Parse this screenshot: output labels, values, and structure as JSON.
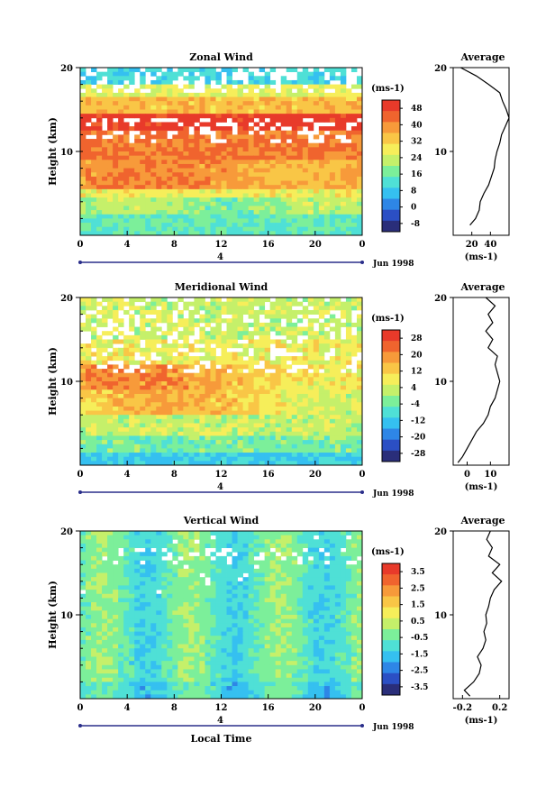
{
  "chart_data": [
    {
      "type": "heatmap",
      "title": "Zonal Wind",
      "ylabel": "Height (km)",
      "xlabel": "",
      "x_ticks": [
        "0",
        "4",
        "8",
        "12",
        "16",
        "20",
        "0"
      ],
      "y_ticks": [
        "10",
        "20"
      ],
      "ylim": [
        0,
        20
      ],
      "date_label": "Jun 1998",
      "date_marker": "4",
      "units": "(ms-1)",
      "colorbar_ticks": [
        "48",
        "40",
        "32",
        "24",
        "16",
        "8",
        "0",
        "-8"
      ],
      "profile": {
        "title": "Average",
        "x_ticks": [
          "20",
          "40"
        ],
        "xlim": [
          0,
          60
        ],
        "y_ticks": [
          "10",
          "20"
        ],
        "units": "(ms-1)",
        "heights": [
          1.2,
          2,
          3,
          4,
          5,
          6,
          7,
          8,
          9,
          10,
          11,
          12,
          13,
          14,
          15,
          16,
          17,
          18,
          19,
          20
        ],
        "values": [
          18,
          24,
          28,
          29,
          33,
          38,
          41,
          44,
          45,
          47,
          50,
          52,
          56,
          60,
          57,
          53,
          50,
          38,
          25,
          8
        ]
      }
    },
    {
      "type": "heatmap",
      "title": "Meridional Wind",
      "ylabel": "Height (km)",
      "xlabel": "",
      "x_ticks": [
        "0",
        "4",
        "8",
        "12",
        "16",
        "20",
        "0"
      ],
      "y_ticks": [
        "10",
        "20"
      ],
      "ylim": [
        0,
        20
      ],
      "date_label": "Jun 1998",
      "date_marker": "4",
      "units": "(ms-1)",
      "colorbar_ticks": [
        "28",
        "20",
        "12",
        "4",
        "-4",
        "-12",
        "-20",
        "-28"
      ],
      "profile": {
        "title": "Average",
        "x_ticks": [
          "0",
          "10"
        ],
        "xlim": [
          -6,
          18
        ],
        "y_ticks": [
          "10",
          "20"
        ],
        "units": "(ms-1)",
        "heights": [
          0.3,
          1,
          2,
          3,
          4,
          5,
          6,
          7,
          8,
          9,
          10,
          11,
          12,
          13,
          14,
          15,
          16,
          17,
          18,
          19,
          20
        ],
        "values": [
          -4,
          -2,
          0,
          2,
          4,
          7,
          9,
          10,
          12,
          13,
          14,
          13,
          12,
          13,
          9,
          11,
          8,
          11,
          9,
          12,
          8
        ]
      }
    },
    {
      "type": "heatmap",
      "title": "Vertical Wind",
      "ylabel": "Height (km)",
      "xlabel": "Local Time",
      "x_ticks": [
        "0",
        "4",
        "8",
        "12",
        "16",
        "20",
        "0"
      ],
      "y_ticks": [
        "10",
        "20"
      ],
      "ylim": [
        0,
        20
      ],
      "date_label": "Jun 1998",
      "date_marker": "4",
      "units": "(ms-1)",
      "colorbar_ticks": [
        "3.5",
        "2.5",
        "1.5",
        "0.5",
        "-0.5",
        "-1.5",
        "-2.5",
        "-3.5"
      ],
      "profile": {
        "title": "Average",
        "x_ticks": [
          "-0.2",
          "0.2"
        ],
        "xlim": [
          -0.3,
          0.3
        ],
        "y_ticks": [
          "10",
          "20"
        ],
        "units": "(ms-1)",
        "heights": [
          0.3,
          1,
          2,
          3,
          4,
          5,
          6,
          7,
          8,
          9,
          10,
          11,
          12,
          13,
          14,
          15,
          16,
          17,
          18,
          19,
          20
        ],
        "values": [
          -0.12,
          -0.18,
          -0.08,
          -0.02,
          0.0,
          -0.04,
          0.02,
          0.05,
          0.03,
          0.06,
          0.05,
          0.08,
          0.1,
          0.14,
          0.22,
          0.12,
          0.2,
          0.08,
          0.12,
          0.06,
          0.1
        ]
      }
    }
  ]
}
